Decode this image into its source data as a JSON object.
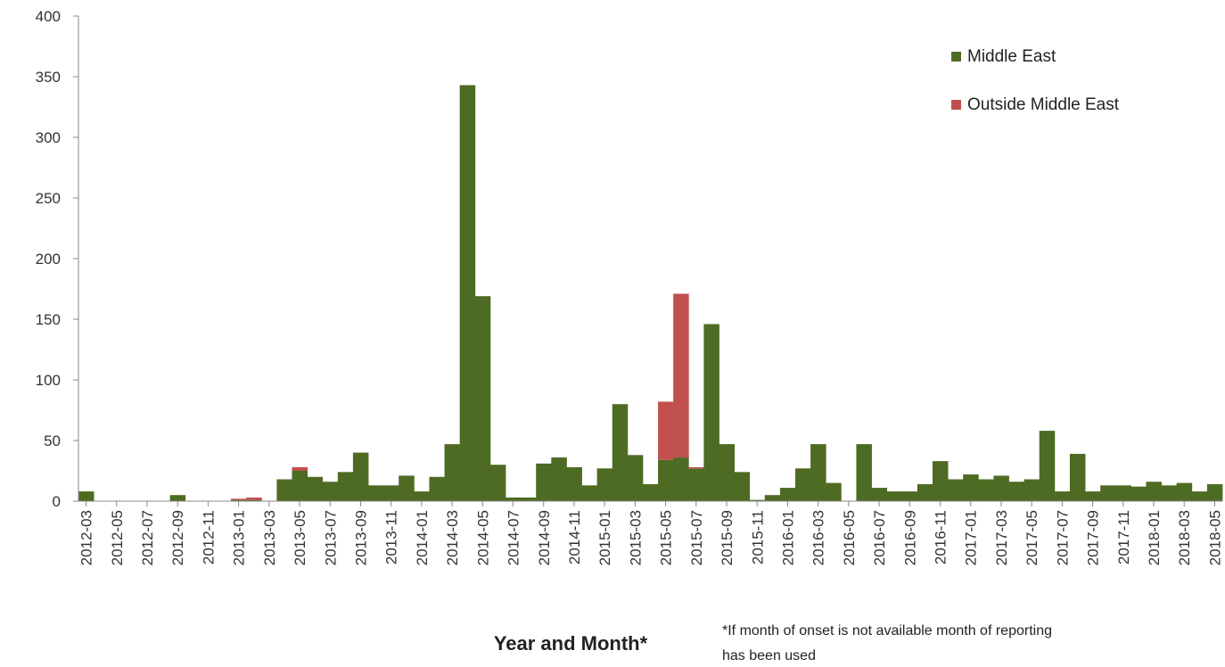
{
  "chart_data": {
    "type": "bar",
    "stacked": true,
    "categories": [
      "2012-03",
      "2012-04",
      "2012-05",
      "2012-06",
      "2012-07",
      "2012-08",
      "2012-09",
      "2012-10",
      "2012-11",
      "2012-12",
      "2013-01",
      "2013-02",
      "2013-03",
      "2013-04",
      "2013-05",
      "2013-06",
      "2013-07",
      "2013-08",
      "2013-09",
      "2013-10",
      "2013-11",
      "2013-12",
      "2014-01",
      "2014-02",
      "2014-03",
      "2014-04",
      "2014-05",
      "2014-06",
      "2014-07",
      "2014-08",
      "2014-09",
      "2014-10",
      "2014-11",
      "2014-12",
      "2015-01",
      "2015-02",
      "2015-03",
      "2015-04",
      "2015-05",
      "2015-06",
      "2015-07",
      "2015-08",
      "2015-09",
      "2015-10",
      "2015-11",
      "2015-12",
      "2016-01",
      "2016-02",
      "2016-03",
      "2016-04",
      "2016-05",
      "2016-06",
      "2016-07",
      "2016-08",
      "2016-09",
      "2016-10",
      "2016-11",
      "2016-12",
      "2017-01",
      "2017-02",
      "2017-03",
      "2017-04",
      "2017-05",
      "2017-06",
      "2017-07",
      "2017-08",
      "2017-09",
      "2017-10",
      "2017-11",
      "2017-12",
      "2018-01",
      "2018-02",
      "2018-03",
      "2018-04",
      "2018-05"
    ],
    "tick_labels": [
      "2012-03",
      "2012-05",
      "2012-07",
      "2012-09",
      "2012-11",
      "2013-01",
      "2013-03",
      "2013-05",
      "2013-07",
      "2013-09",
      "2013-11",
      "2014-01",
      "2014-03",
      "2014-05",
      "2014-07",
      "2014-09",
      "2014-11",
      "2015-01",
      "2015-03",
      "2015-05",
      "2015-07",
      "2015-09",
      "2015-11",
      "2016-01",
      "2016-03",
      "2016-05",
      "2016-07",
      "2016-09",
      "2016-11",
      "2017-01",
      "2017-03",
      "2017-05",
      "2017-07",
      "2017-09",
      "2017-11",
      "2018-01",
      "2018-03",
      "2018-05"
    ],
    "series": [
      {
        "name": "Middle East",
        "color": "#4e6b23",
        "values": [
          8,
          0,
          0,
          0,
          0,
          0,
          5,
          0,
          0,
          0,
          1,
          1,
          0,
          18,
          25,
          20,
          16,
          24,
          40,
          13,
          13,
          21,
          8,
          20,
          47,
          343,
          169,
          30,
          3,
          3,
          31,
          36,
          28,
          13,
          27,
          80,
          38,
          14,
          34,
          36,
          27,
          146,
          47,
          24,
          1,
          5,
          11,
          27,
          47,
          15,
          0,
          47,
          11,
          8,
          8,
          14,
          33,
          18,
          22,
          18,
          21,
          16,
          18,
          58,
          8,
          39,
          8,
          13,
          13,
          12,
          16,
          13,
          15,
          8,
          14
        ]
      },
      {
        "name": "Outside Middle East",
        "color": "#c0504d",
        "values": [
          0,
          0,
          0,
          0,
          0,
          0,
          0,
          0,
          0,
          0,
          1,
          2,
          0,
          0,
          3,
          0,
          0,
          0,
          0,
          0,
          0,
          0,
          0,
          0,
          0,
          0,
          0,
          0,
          0,
          0,
          0,
          0,
          0,
          0,
          0,
          0,
          0,
          0,
          48,
          135,
          1,
          0,
          0,
          0,
          0,
          0,
          0,
          0,
          0,
          0,
          0,
          0,
          0,
          0,
          0,
          0,
          0,
          0,
          0,
          0,
          0,
          0,
          0,
          0,
          0,
          0,
          0,
          0,
          0,
          0,
          0,
          0,
          0,
          0,
          0
        ]
      }
    ],
    "ylim": [
      0,
      400
    ],
    "yticks": [
      0,
      50,
      100,
      150,
      200,
      250,
      300,
      350,
      400
    ],
    "xlabel": "Year and Month*",
    "ylabel": "",
    "title": "",
    "legend_position": "top-right",
    "grid": false,
    "footnote": [
      "*If month of onset is not available month of reporting",
      "has been used"
    ]
  }
}
